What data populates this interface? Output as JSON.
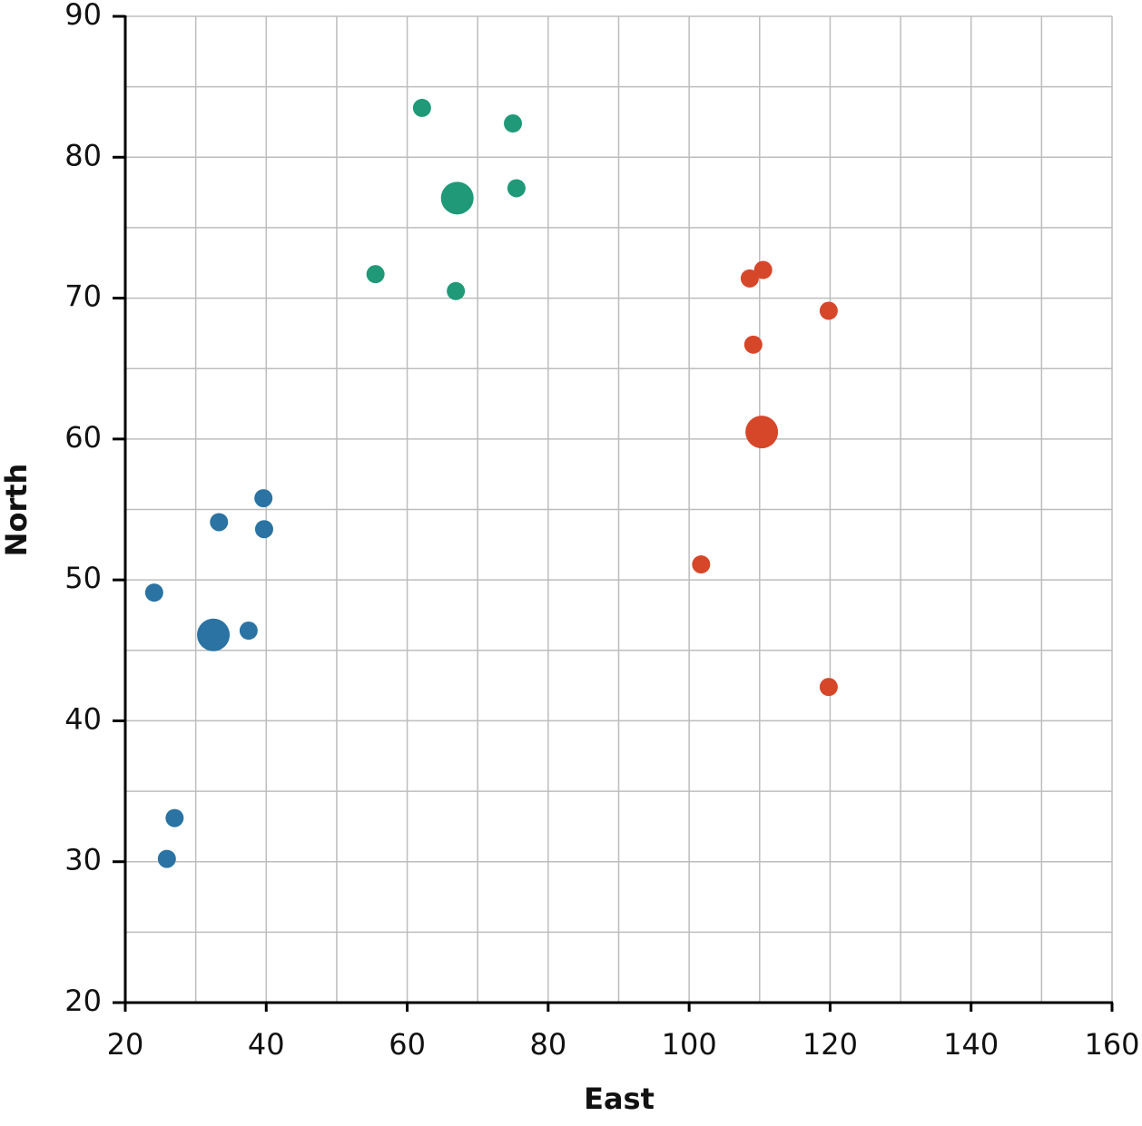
{
  "chart_data": {
    "type": "scatter",
    "x_label": "East",
    "y_label": "North",
    "xlim": [
      20,
      160
    ],
    "xticks": [
      20,
      40,
      60,
      80,
      100,
      120,
      140,
      160
    ],
    "xminorticks": [
      30,
      50,
      70,
      90,
      110,
      130,
      150
    ],
    "ylim": [
      20,
      90
    ],
    "yticks": [
      20,
      30,
      40,
      50,
      60,
      70,
      80,
      90
    ],
    "yminorticks": [
      25,
      35,
      45,
      55,
      65,
      75,
      85
    ],
    "grid": true,
    "series": [
      {
        "color": "#2a73a3",
        "marker_size": 10,
        "x": [
          24.1,
          25.9,
          27.0,
          33.3,
          37.5,
          39.6,
          39.7
        ],
        "y": [
          49.1,
          30.2,
          33.1,
          54.1,
          46.4,
          55.8,
          53.6
        ]
      },
      {
        "color": "#2a73a3",
        "marker_size": 18,
        "x": [
          32.5
        ],
        "y": [
          46.1
        ]
      },
      {
        "color": "#1f9977",
        "marker_size": 10,
        "x": [
          62.1,
          75.0,
          75.5,
          55.5,
          66.9
        ],
        "y": [
          83.5,
          82.4,
          77.8,
          71.7,
          70.5
        ]
      },
      {
        "color": "#1f9977",
        "marker_size": 18,
        "x": [
          67.1
        ],
        "y": [
          77.1
        ]
      },
      {
        "color": "#d6472a",
        "marker_size": 10,
        "x": [
          108.6,
          110.5,
          119.8,
          109.1,
          101.7,
          119.8
        ],
        "y": [
          71.4,
          72.0,
          69.1,
          66.7,
          51.1,
          42.4
        ]
      },
      {
        "color": "#d6472a",
        "marker_size": 18,
        "x": [
          110.3
        ],
        "y": [
          60.5
        ]
      }
    ]
  }
}
